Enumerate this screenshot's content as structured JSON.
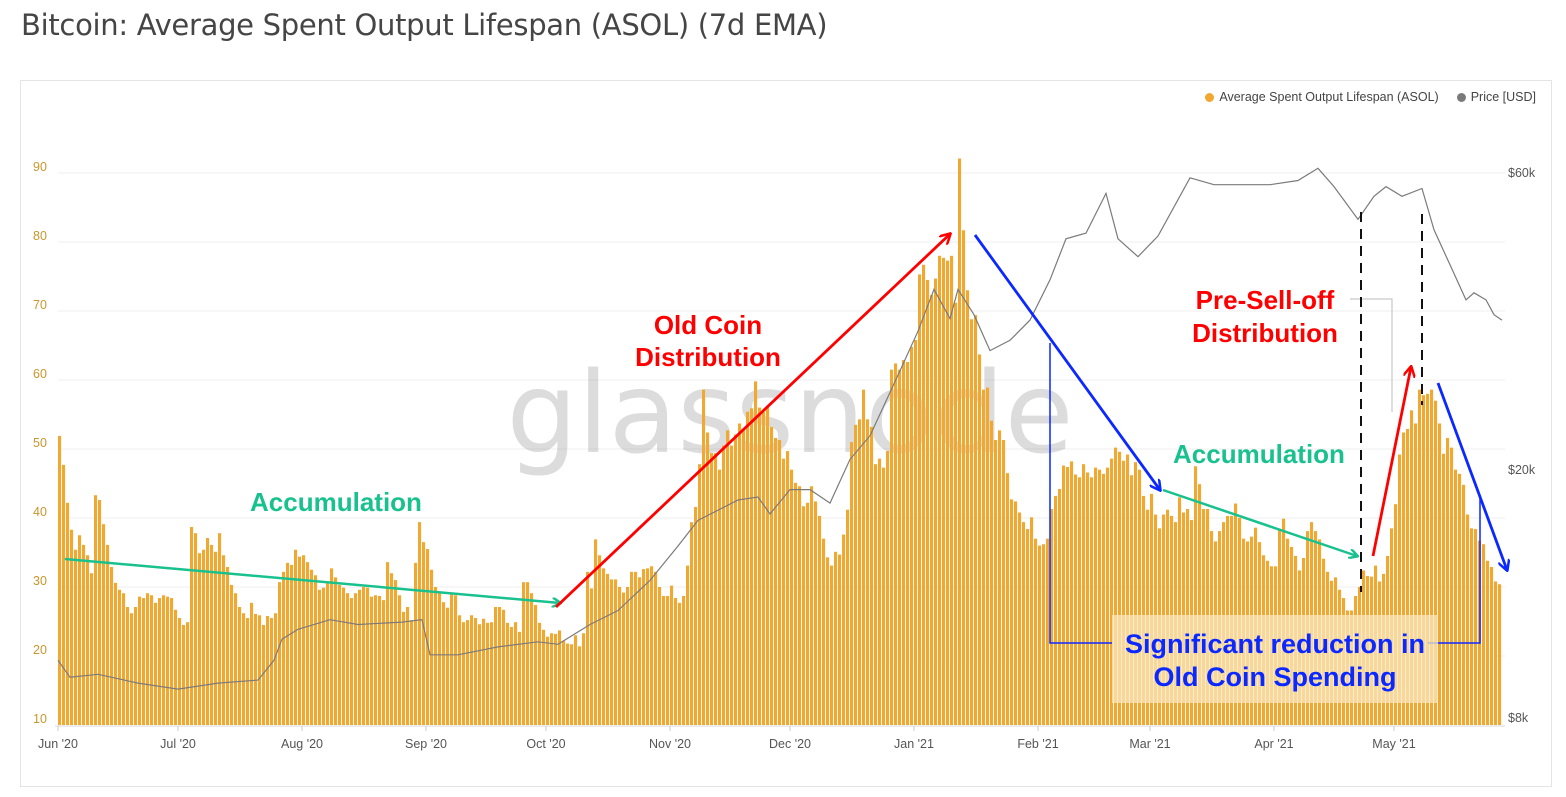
{
  "title": "Bitcoin: Average Spent Output Lifespan (ASOL) (7d EMA)",
  "watermark": "glassnode",
  "colors": {
    "bars": "#f0a830",
    "price": "#7a7a7a",
    "green": "#19c18e",
    "red": "#ff0000",
    "blue": "#0a28ff"
  },
  "legend": [
    {
      "label": "Average Spent Output Lifespan (ASOL)",
      "color": "#f0a830"
    },
    {
      "label": "Price [USD]",
      "color": "#7a7a7a"
    }
  ],
  "annotations": {
    "accumulation_1": "Accumulation",
    "old_coin_1": "Old Coin",
    "old_coin_2": "Distribution",
    "accumulation_2": "Accumulation",
    "pre_selloff_1": "Pre-Sell-off",
    "pre_selloff_2": "Distribution",
    "reduction_1": "Significant reduction in",
    "reduction_2": "Old Coin Spending"
  },
  "chart_data": {
    "type": "bar",
    "title": "Bitcoin: Average Spent Output Lifespan (ASOL) (7d EMA)",
    "start_date": "2020-06-01",
    "x_ticks": [
      {
        "label": "Jun '20",
        "day": 0
      },
      {
        "label": "Jul '20",
        "day": 30
      },
      {
        "label": "Aug '20",
        "day": 61
      },
      {
        "label": "Sep '20",
        "day": 92
      },
      {
        "label": "Oct '20",
        "day": 122
      },
      {
        "label": "Nov '20",
        "day": 153
      },
      {
        "label": "Dec '20",
        "day": 183
      },
      {
        "label": "Jan '21",
        "day": 214
      },
      {
        "label": "Feb '21",
        "day": 245
      },
      {
        "label": "Mar '21",
        "day": 273
      },
      {
        "label": "Apr '21",
        "day": 304
      },
      {
        "label": "May '21",
        "day": 334
      }
    ],
    "y_left": {
      "ticks": [
        10,
        20,
        30,
        40,
        50,
        60,
        70,
        80,
        90
      ],
      "range": [
        10,
        98
      ]
    },
    "y_right": {
      "scale": "log",
      "ticks": [
        {
          "label": "$60k",
          "value": 60000
        },
        {
          "label": "$20k",
          "value": 20000
        },
        {
          "label": "$8k",
          "value": 8000
        }
      ]
    },
    "grid": true,
    "legend_position": "top-right",
    "series": [
      {
        "name": "Average Spent Output Lifespan (ASOL)",
        "type": "bar",
        "axis": "left",
        "values": [
          51.9,
          47.7,
          42.2,
          38.3,
          35.4,
          37.5,
          36.1,
          34.6,
          32.0,
          43.3,
          42.6,
          39.1,
          36.1,
          32.9,
          30.6,
          29.6,
          29.1,
          27.1,
          26.2,
          27.1,
          28.6,
          28.4,
          29.1,
          28.8,
          27.7,
          28.4,
          28.8,
          28.6,
          28.4,
          26.7,
          25.5,
          24.5,
          24.9,
          38.7,
          37.8,
          34.9,
          35.4,
          37.1,
          36.1,
          35.1,
          37.8,
          34.6,
          32.9,
          30.3,
          29.1,
          27.1,
          26.2,
          25.5,
          27.7,
          26.1,
          25.9,
          24.5,
          25.8,
          25.5,
          26.2,
          30.7,
          32.2,
          33.5,
          33.2,
          35.4,
          34.4,
          34.6,
          33.6,
          32.5,
          31.7,
          29.6,
          29.9,
          30.6,
          32.7,
          31.4,
          30.3,
          29.9,
          29.1,
          28.4,
          29.1,
          29.6,
          30.0,
          29.9,
          28.6,
          28.8,
          28.7,
          28.1,
          33.6,
          32.0,
          31.0,
          28.8,
          26.4,
          27.1,
          25.2,
          33.5,
          39.4,
          36.5,
          35.5,
          32.5,
          30.0,
          29.3,
          27.8,
          27.0,
          29.1,
          28.8,
          25.9,
          24.9,
          25.2,
          25.9,
          25.5,
          24.6,
          25.4,
          24.8,
          24.9,
          27.1,
          27.1,
          26.7,
          24.8,
          24.2,
          24.9,
          23.5,
          30.7,
          30.7,
          29.1,
          27.4,
          24.8,
          23.8,
          22.8,
          23.3,
          23.2,
          23.7,
          22.2,
          21.8,
          21.7,
          23.0,
          21.4,
          23.3,
          32.2,
          29.8,
          36.9,
          34.6,
          32.7,
          31.9,
          31.1,
          31.1,
          30.0,
          29.2,
          30.0,
          32.2,
          32.2,
          31.4,
          32.6,
          32.7,
          33.0,
          32.2,
          30.0,
          28.7,
          28.7,
          30.2,
          28.4,
          27.7,
          28.7,
          33.1,
          39.4,
          41.6,
          47.8,
          58.6,
          52.4,
          49.4,
          49.4,
          47.0,
          50.5,
          52.7,
          50.5,
          52.1,
          53.7,
          52.7,
          55.4,
          55.9,
          59.8,
          56.0,
          55.4,
          56.2,
          53.2,
          51.6,
          51.3,
          48.6,
          49.7,
          47.0,
          45.1,
          44.6,
          41.7,
          42.2,
          44.6,
          42.4,
          40.3,
          37.0,
          34.3,
          33.1,
          35.1,
          34.7,
          37.6,
          41.2,
          51.0,
          53.5,
          54.3,
          58.6,
          54.3,
          53.2,
          47.8,
          48.6,
          47.3,
          49.7,
          61.5,
          62.4,
          61.5,
          62.9,
          62.6,
          64.8,
          65.8,
          75.3,
          76.7,
          74.5,
          72.3,
          74.7,
          78.0,
          77.7,
          77.3,
          78.0,
          71.2,
          92.1,
          81.7,
          73.0,
          68.8,
          69.4,
          63.7,
          58.6,
          58.9,
          54.1,
          51.3,
          52.7,
          51.3,
          46.5,
          42.7,
          42.4,
          40.8,
          39.4,
          38.4,
          40.1,
          37.0,
          36.0,
          36.2,
          37.0,
          41.3,
          43.2,
          44.2,
          47.6,
          47.4,
          48.2,
          46.3,
          45.9,
          47.8,
          46.6,
          45.9,
          47.3,
          47.0,
          46.4,
          47.3,
          48.6,
          50.2,
          49.6,
          48.3,
          49.2,
          46.2,
          48.1,
          47.0,
          43.2,
          41.2,
          43.5,
          40.5,
          38.5,
          40.5,
          41.2,
          40.3,
          39.4,
          43.0,
          40.8,
          41.3,
          39.7,
          47.5,
          44.9,
          41.3,
          41.3,
          38.1,
          36.6,
          38.1,
          39.4,
          40.3,
          40.3,
          42.1,
          40.0,
          37.0,
          36.6,
          37.3,
          38.6,
          36.5,
          34.6,
          33.8,
          33.0,
          33.0,
          38.4,
          39.9,
          37.0,
          35.8,
          34.5,
          32.4,
          34.2,
          38.1,
          39.4,
          38.1,
          36.9,
          34.1,
          32.2,
          30.9,
          31.4,
          29.6,
          28.4,
          26.6,
          26.6,
          28.7,
          30.0,
          32.4,
          31.6,
          31.5,
          33.1,
          30.8,
          31.9,
          34.5,
          38.5,
          42.0,
          49.2,
          52.4,
          52.9,
          55.6,
          53.7,
          58.6,
          57.8,
          58.0,
          58.6,
          57.0,
          53.7,
          49.3,
          51.6,
          50.2,
          47.0,
          46.4,
          44.8,
          40.5,
          38.5,
          38.4,
          36.7,
          36.2,
          33.8,
          32.9,
          30.8,
          30.4
        ]
      },
      {
        "name": "Price [USD]",
        "type": "line",
        "axis": "right",
        "points": [
          [
            0,
            9900
          ],
          [
            3,
            9300
          ],
          [
            10,
            9400
          ],
          [
            20,
            9100
          ],
          [
            30,
            8900
          ],
          [
            40,
            9100
          ],
          [
            50,
            9200
          ],
          [
            54,
            9900
          ],
          [
            56,
            10700
          ],
          [
            60,
            11100
          ],
          [
            68,
            11500
          ],
          [
            75,
            11300
          ],
          [
            86,
            11400
          ],
          [
            91,
            11500
          ],
          [
            93,
            10100
          ],
          [
            100,
            10100
          ],
          [
            110,
            10400
          ],
          [
            120,
            10600
          ],
          [
            125,
            10500
          ],
          [
            133,
            11300
          ],
          [
            140,
            11900
          ],
          [
            148,
            13300
          ],
          [
            155,
            15100
          ],
          [
            160,
            16600
          ],
          [
            170,
            17900
          ],
          [
            175,
            18100
          ],
          [
            178,
            17000
          ],
          [
            183,
            18600
          ],
          [
            188,
            18600
          ],
          [
            193,
            17700
          ],
          [
            198,
            20800
          ],
          [
            203,
            22700
          ],
          [
            210,
            28400
          ],
          [
            215,
            33400
          ],
          [
            219,
            39000
          ],
          [
            223,
            35000
          ],
          [
            225,
            39000
          ],
          [
            229,
            35500
          ],
          [
            233,
            31100
          ],
          [
            238,
            32300
          ],
          [
            243,
            34800
          ],
          [
            248,
            40400
          ],
          [
            252,
            47000
          ],
          [
            257,
            48000
          ],
          [
            262,
            55600
          ],
          [
            265,
            47000
          ],
          [
            270,
            44000
          ],
          [
            275,
            47500
          ],
          [
            283,
            58900
          ],
          [
            289,
            57400
          ],
          [
            295,
            57400
          ],
          [
            303,
            57400
          ],
          [
            310,
            58300
          ],
          [
            315,
            61000
          ],
          [
            319,
            57000
          ],
          [
            325,
            50500
          ],
          [
            329,
            55000
          ],
          [
            332,
            57000
          ],
          [
            336,
            55000
          ],
          [
            341,
            56600
          ],
          [
            344,
            48600
          ],
          [
            348,
            42700
          ],
          [
            352,
            37500
          ],
          [
            354,
            38500
          ],
          [
            357,
            37500
          ],
          [
            359,
            35500
          ],
          [
            361,
            34800
          ]
        ]
      }
    ]
  }
}
